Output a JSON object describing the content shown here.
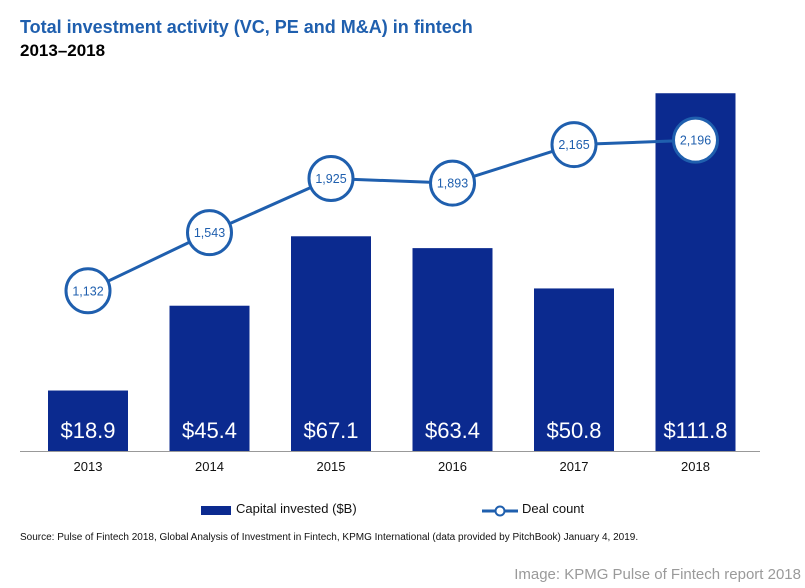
{
  "chart_data": {
    "type": "bar",
    "title": "Total investment activity (VC, PE and M&A) in fintech",
    "subtitle": "2013–2018",
    "categories": [
      "2013",
      "2014",
      "2015",
      "2016",
      "2017",
      "2018"
    ],
    "series": [
      {
        "name": "Capital invested ($B)",
        "kind": "bar",
        "values": [
          18.9,
          45.4,
          67.1,
          63.4,
          50.8,
          111.8
        ],
        "labels": [
          "$18.9",
          "$45.4",
          "$67.1",
          "$63.4",
          "$50.8",
          "$111.8"
        ],
        "color": "#0b2a8f"
      },
      {
        "name": "Deal count",
        "kind": "line",
        "values": [
          1132,
          1543,
          1925,
          1893,
          2165,
          2196
        ],
        "labels": [
          "1,132",
          "1,543",
          "1,925",
          "1,893",
          "2,165",
          "2,196"
        ],
        "color": "#1f5fae"
      }
    ],
    "bar_ylim": [
      0,
      115
    ],
    "line_ylim": [
      0,
      2600
    ],
    "grid": false,
    "legend": "bottom-center"
  },
  "legend": {
    "bars_label": "Capital invested ($B)",
    "line_label": "Deal count"
  },
  "source": "Source: Pulse of Fintech 2018, Global Analysis of Investment in Fintech, KPMG International (data provided by PitchBook) January 4, 2019.",
  "credit": "Image: KPMG Pulse of Fintech report 2018"
}
